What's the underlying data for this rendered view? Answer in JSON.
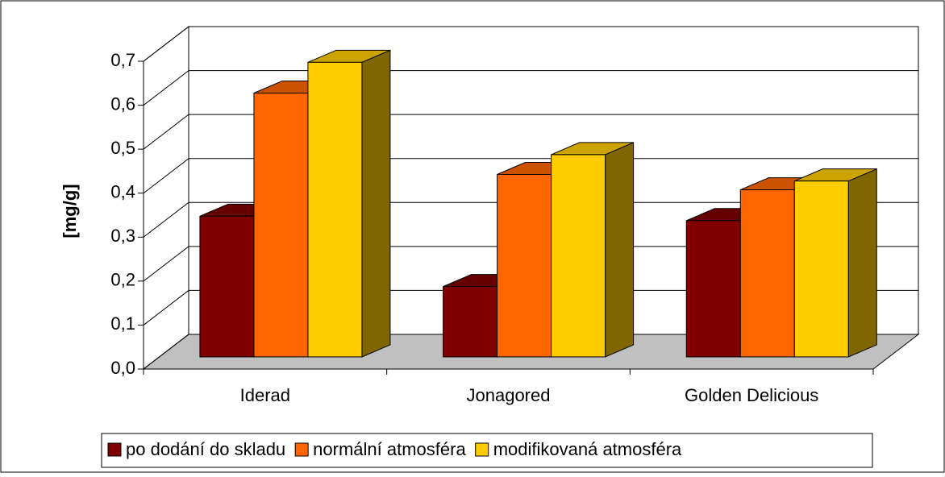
{
  "chart_data": {
    "type": "bar3d",
    "y_label": "[mg/g]",
    "categories": [
      "Iderad",
      "Jonagored",
      "Golden Delicious"
    ],
    "series": [
      {
        "name": "po dodání do skladu",
        "color": "#800000",
        "values": [
          0.32,
          0.16,
          0.31
        ]
      },
      {
        "name": "normální atmosféra",
        "color": "#ff6600",
        "values": [
          0.6,
          0.415,
          0.38
        ]
      },
      {
        "name": "modifikovaná atmosféra",
        "color": "#ffcc00",
        "values": [
          0.67,
          0.46,
          0.4
        ]
      }
    ],
    "ylim": [
      0,
      0.7
    ],
    "yticks": [
      {
        "value": 0,
        "label": "0,0"
      },
      {
        "value": 0.1,
        "label": "0,1"
      },
      {
        "value": 0.2,
        "label": "0,2"
      },
      {
        "value": 0.3,
        "label": "0,3"
      },
      {
        "value": 0.4,
        "label": "0,4"
      },
      {
        "value": 0.5,
        "label": "0,5"
      },
      {
        "value": 0.6,
        "label": "0,6"
      },
      {
        "value": 0.7,
        "label": "0,7"
      }
    ],
    "grid": true,
    "legend": "bottom"
  }
}
